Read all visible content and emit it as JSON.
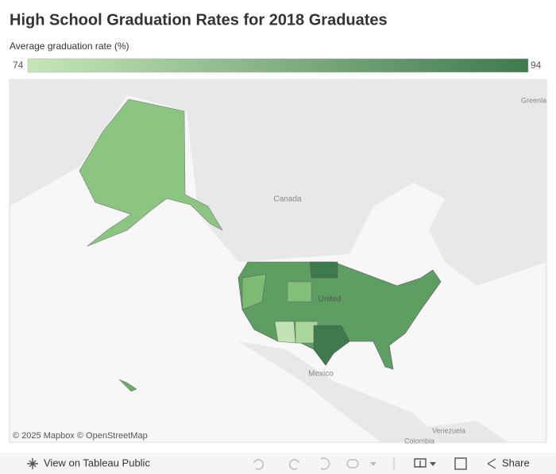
{
  "title": "High School Graduation Rates for 2018 Graduates",
  "legend": {
    "title": "Average graduation rate (%)",
    "min": 74,
    "max": 94,
    "colors": [
      "#c6e7b8",
      "#3f7a4f"
    ]
  },
  "map": {
    "labels": [
      "Canada",
      "United",
      "Mexico",
      "Greenla",
      "Venezuela",
      "Colombia"
    ],
    "attribution": "© 2025 Mapbox © OpenStreetMap"
  },
  "toolbar": {
    "view": "View on Tableau Public",
    "share": "Share"
  }
}
